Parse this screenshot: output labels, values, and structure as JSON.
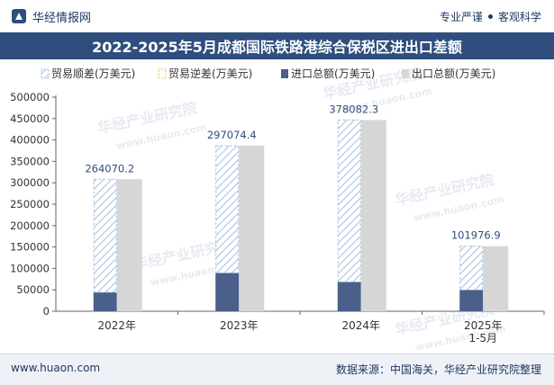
{
  "header": {
    "brand": "华经情报网",
    "slogan_left": "专业严谨",
    "slogan_right": "客观科学"
  },
  "title": "2022-2025年5月成都国际铁路港综合保税区进出口差额",
  "footer": {
    "website": "www.huaon.com",
    "source": "数据来源：中国海关，华经产业研究院整理"
  },
  "watermark": {
    "cn": "华经产业研究院",
    "en": "www.huaon.com"
  },
  "colors": {
    "import": "#4a5f8a",
    "export": "#d6d6d6",
    "surplus_hatch": "#a9c3e0",
    "axis": "#666666",
    "label": "#333333",
    "value_label": "#2f4e7e",
    "title_bg": "#2f4e7e"
  },
  "chart_data": {
    "type": "bar",
    "categories": [
      "2022年",
      "2023年",
      "2024年",
      "2025年\n1-5月"
    ],
    "series": [
      {
        "name": "贸易顺差(万美元)",
        "values": [
          264070.2,
          297074.4,
          378082.3,
          101976.9
        ]
      },
      {
        "name": "贸易逆差(万美元)",
        "values": [
          0,
          0,
          0,
          0
        ]
      },
      {
        "name": "进口总额(万美元)",
        "values": [
          44200,
          89500,
          68500,
          50000
        ]
      },
      {
        "name": "出口总额(万美元)",
        "values": [
          308270.2,
          386574.4,
          446582.3,
          151976.9
        ]
      }
    ],
    "surplus_labels": [
      "264070.2",
      "297074.4",
      "378082.3",
      "101976.9"
    ],
    "y_ticks": [
      0,
      50000,
      100000,
      150000,
      200000,
      250000,
      300000,
      350000,
      400000,
      450000,
      500000
    ],
    "ylim": [
      0,
      500000
    ],
    "xlabel": "",
    "ylabel": "",
    "legend_position": "top"
  }
}
